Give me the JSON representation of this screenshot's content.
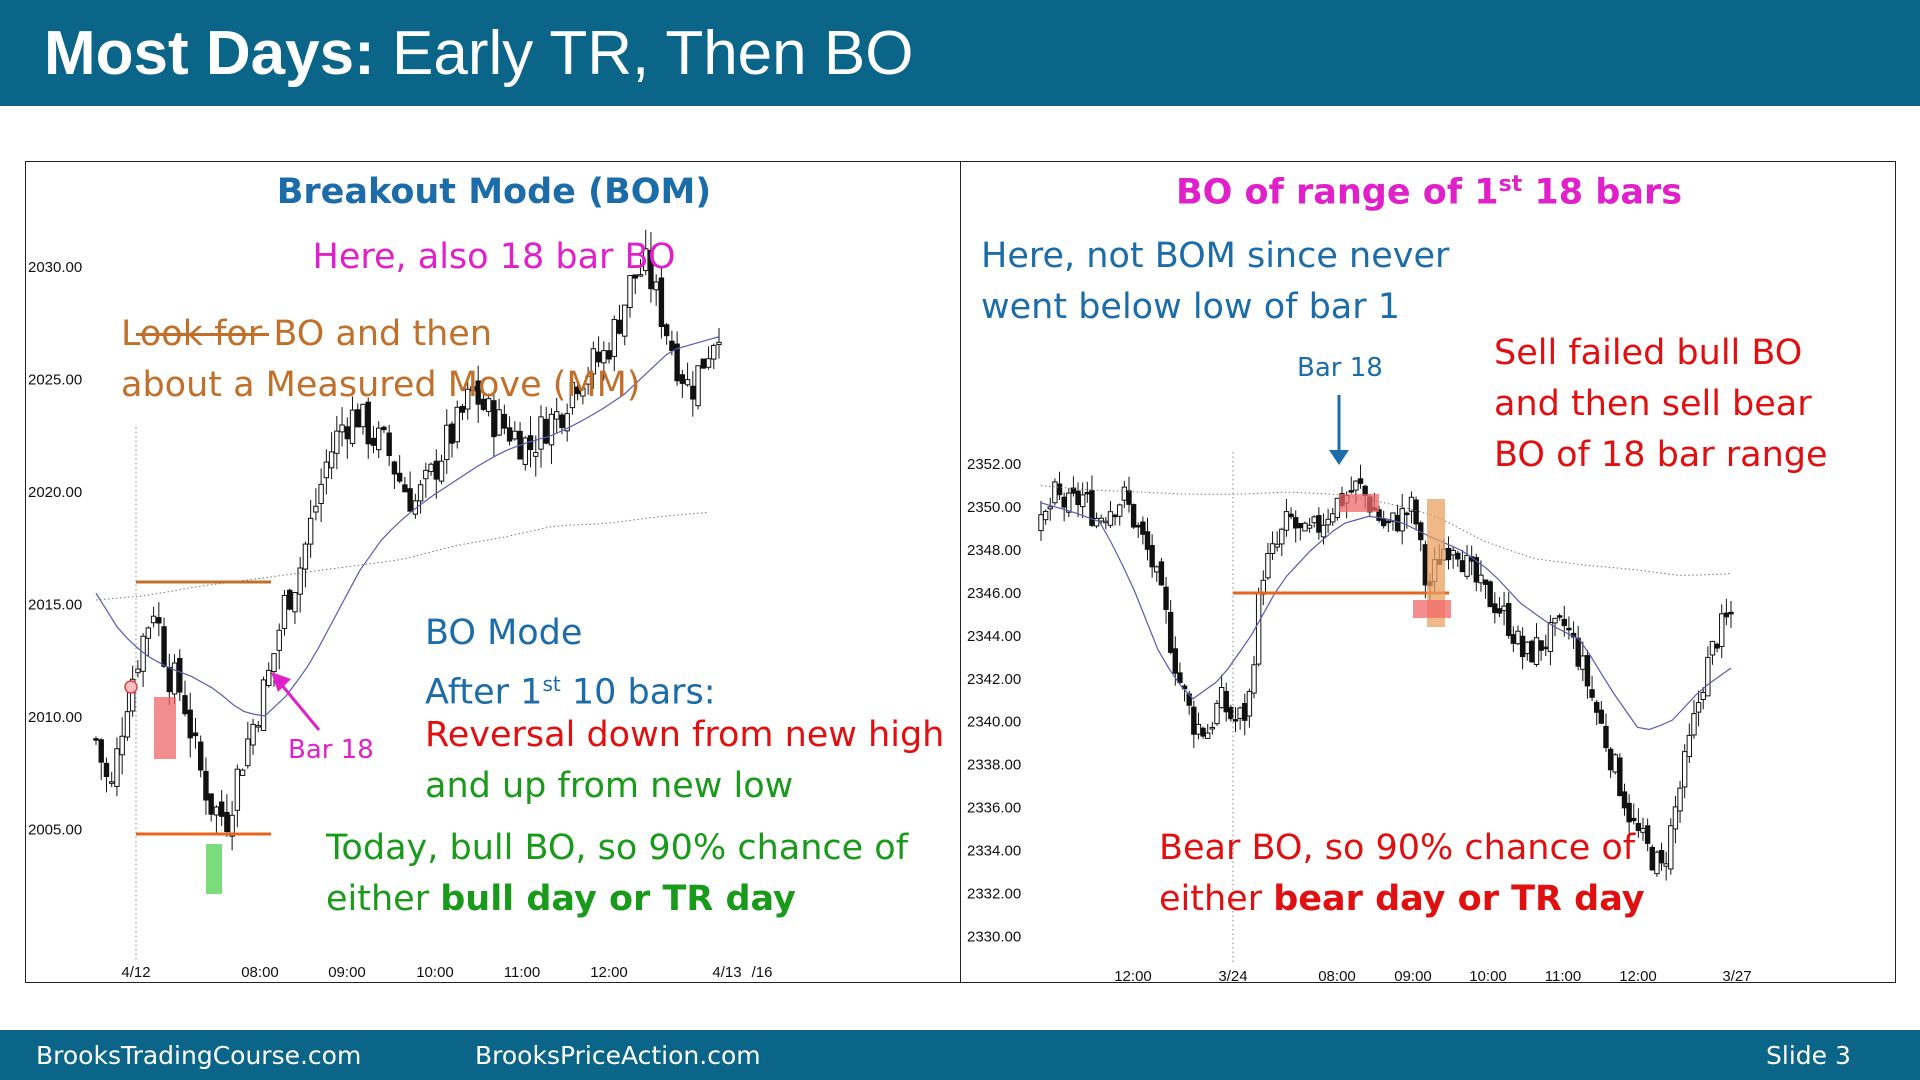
{
  "header": {
    "title_bold": "Most Days:",
    "title_rest": "Early TR, Then BO"
  },
  "footer": {
    "site1": "BrooksTradingCourse.com",
    "site2": "BrooksPriceAction.com",
    "slide": "Slide  3"
  },
  "colors": {
    "header_bg": "#0b6589",
    "blue": "#1b6ca8",
    "magenta": "#e020c8",
    "brown": "#c0702a",
    "red": "#e01010",
    "green": "#1a9a1a",
    "orange_line": "#e8641e"
  },
  "left": {
    "title": "Breakout Mode (BOM)",
    "subtitle": "Here, also 18 bar BO",
    "look_line1": "Look for BO and then",
    "look_line2": "about a Measured Move (MM)",
    "bo_mode": "BO Mode",
    "after_pre": "After 1",
    "after_sup": "st",
    "after_post": " 10 bars:",
    "reversal_line1": "Reversal down from new high",
    "reversal_line2": "and up from new low",
    "today_line1": "Today, bull BO, so 90% chance of",
    "today_line2_pre": "either ",
    "today_line2_bold": "bull day or TR day",
    "bar18_label": "Bar 18"
  },
  "right": {
    "title_pre": "BO of range of 1",
    "title_sup": "st",
    "title_post": " 18 bars",
    "here_line1": "Here, not BOM since never",
    "here_line2": "went below low of bar 1",
    "bar18_label": "Bar 18",
    "sell_line1": "Sell failed bull BO",
    "sell_line2": "and then sell bear",
    "sell_line3": "BO of 18 bar range",
    "bear_line1": "Bear BO, so 90% chance of",
    "bear_line2_pre": "either ",
    "bear_line2_bold": "bear day or TR day"
  },
  "chart_data": [
    {
      "type": "candlestick",
      "ylim": [
        2002,
        2032
      ],
      "yticks": [
        "2030.00",
        "2025.00",
        "2020.00",
        "2015.00",
        "2010.00",
        "2005.00"
      ],
      "xticks": [
        "4/12",
        "08:00",
        "09:00",
        "10:00",
        "11:00",
        "12:00",
        "4/13",
        "/16"
      ],
      "close_path": [
        2009,
        2006.5,
        2010.5,
        2013,
        2015,
        2012,
        2011,
        2008,
        2006,
        2005.5,
        2008,
        2010,
        2012,
        2015,
        2016.5,
        2019,
        2021.5,
        2023,
        2023.5,
        2022.5,
        2022,
        2020.5,
        2019.5,
        2020.5,
        2022,
        2023,
        2024.5,
        2023.5,
        2023,
        2022.5,
        2022,
        2023,
        2023.5,
        2025,
        2025.5,
        2026,
        2027.5,
        2029.5,
        2030,
        2028,
        2026,
        2024.5,
        2026,
        2027.5
      ],
      "ema_path": [
        2015.5,
        2013.8,
        2012.8,
        2012.2,
        2011.8,
        2011.2,
        2010.3,
        2010,
        2011,
        2012.5,
        2014.5,
        2016.5,
        2018,
        2019,
        2019.8,
        2020.5,
        2021.2,
        2021.8,
        2022.2,
        2022.5,
        2023,
        2023.6,
        2024.3,
        2025.3,
        2026.3,
        2026.6,
        2026.9
      ],
      "dotted_path": [
        2015.2,
        2015.4,
        2015.8,
        2016.1,
        2016.4,
        2016.7,
        2017,
        2017.6,
        2018,
        2018.5,
        2018.6,
        2018.9,
        2019.1
      ],
      "mm_target": 2027,
      "range_high": 2016,
      "range_low": 2004.8
    },
    {
      "type": "candlestick",
      "ylim": [
        2329.5,
        2353.5
      ],
      "yticks": [
        "2352.00",
        "2350.00",
        "2348.00",
        "2346.00",
        "2344.00",
        "2342.00",
        "2340.00",
        "2338.00",
        "2336.00",
        "2334.00",
        "2332.00",
        "2330.00"
      ],
      "xticks": [
        "12:00",
        "3/24",
        "08:00",
        "09:00",
        "10:00",
        "11:00",
        "12:00",
        "3/27"
      ],
      "close_path": [
        2349,
        2350.5,
        2350,
        2350.5,
        2349.5,
        2350,
        2350.5,
        2349,
        2347.5,
        2345,
        2342,
        2340,
        2339.5,
        2341,
        2340,
        2340.5,
        2347,
        2348,
        2349.5,
        2348.5,
        2349,
        2350,
        2350.5,
        2351,
        2350,
        2349,
        2349.5,
        2350,
        2346,
        2348,
        2348.5,
        2347,
        2346,
        2345.5,
        2344.5,
        2343,
        2343.5,
        2344,
        2344.5,
        2343,
        2341,
        2339,
        2337,
        2335,
        2334,
        2333,
        2336,
        2339,
        2342,
        2344,
        2345
      ],
      "ema_path": [
        2350.2,
        2349.8,
        2349.3,
        2346.5,
        2343,
        2341,
        2342,
        2344,
        2346.5,
        2348,
        2349.2,
        2349.6,
        2349.3,
        2348.6,
        2348,
        2347,
        2345.5,
        2344.5,
        2343.8,
        2341.5,
        2339.5,
        2340,
        2341.5,
        2342.5
      ],
      "dotted_path": [
        2351,
        2350.8,
        2350.7,
        2350.6,
        2350.6,
        2350.7,
        2350.6,
        2350.2,
        2349.6,
        2348.4,
        2347.6,
        2347.3,
        2347.1,
        2346.8,
        2346.9
      ],
      "bo_level": 2346
    }
  ]
}
